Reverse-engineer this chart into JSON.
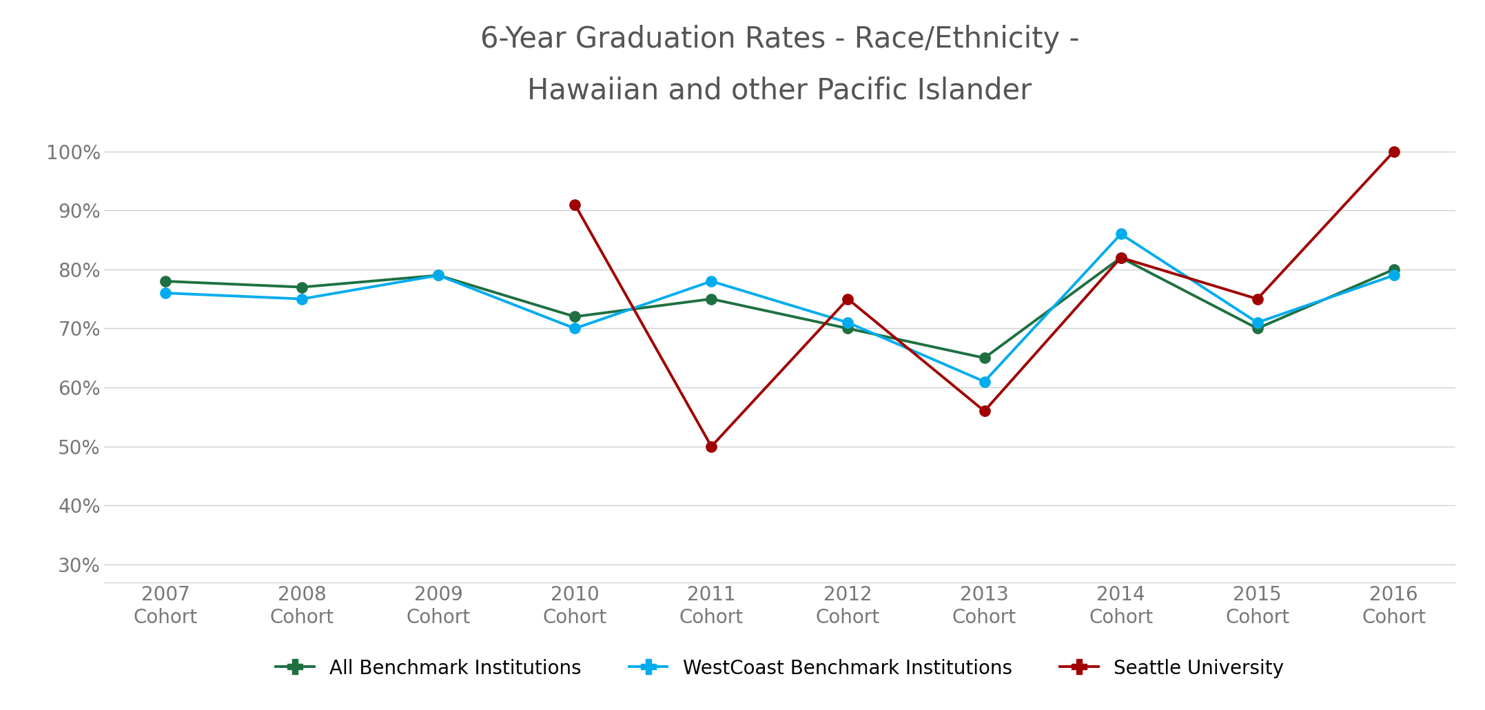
{
  "title": "6-Year Graduation Rates - Race/Ethnicity -\nHawaiian and other Pacific Islander",
  "categories": [
    "2007\nCohort",
    "2008\nCohort",
    "2009\nCohort",
    "2010\nCohort",
    "2011\nCohort",
    "2012\nCohort",
    "2013\nCohort",
    "2014\nCohort",
    "2015\nCohort",
    "2016\nCohort"
  ],
  "all_benchmark": [
    0.78,
    0.77,
    0.79,
    0.72,
    0.75,
    0.7,
    0.65,
    0.82,
    0.7,
    0.8
  ],
  "westcoast_benchmark": [
    0.76,
    0.75,
    0.79,
    0.7,
    0.78,
    0.71,
    0.61,
    0.86,
    0.71,
    0.79
  ],
  "seattle_university": [
    null,
    null,
    null,
    0.91,
    0.5,
    0.75,
    0.56,
    0.82,
    0.75,
    1.0
  ],
  "all_benchmark_color": "#1e7041",
  "westcoast_benchmark_color": "#00aced",
  "seattle_university_color": "#a00000",
  "ylim_min": 0.27,
  "ylim_max": 1.04,
  "yticks": [
    0.3,
    0.4,
    0.5,
    0.6,
    0.7,
    0.8,
    0.9,
    1.0
  ],
  "background_color": "#ffffff",
  "border_color": "#999999",
  "legend_labels": [
    "All Benchmark Institutions",
    "WestCoast Benchmark Institutions",
    "Seattle University"
  ],
  "title_fontsize": 30,
  "tick_fontsize": 20,
  "legend_fontsize": 20,
  "linewidth": 2.8,
  "markersize": 11,
  "grid_color": "#cccccc",
  "tick_color": "#777777",
  "title_color": "#555555"
}
